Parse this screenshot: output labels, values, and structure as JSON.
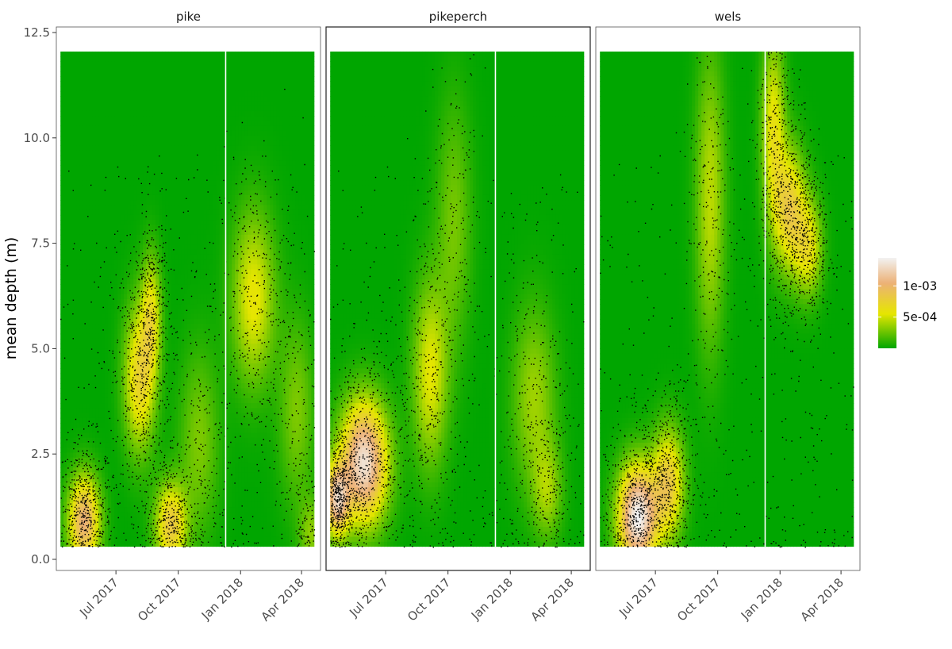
{
  "chart_data": {
    "type": "heatmap",
    "ylabel": "mean depth (m)",
    "ylim": [
      0,
      12.5
    ],
    "y_ticks": [
      {
        "value": 0.0,
        "label": "0.0"
      },
      {
        "value": 2.5,
        "label": "2.5"
      },
      {
        "value": 5.0,
        "label": "5.0"
      },
      {
        "value": 7.5,
        "label": "7.5"
      },
      {
        "value": 10.0,
        "label": "10.0"
      },
      {
        "value": 12.5,
        "label": "12.5"
      }
    ],
    "x_range": [
      "2017-04-04",
      "2018-04-29"
    ],
    "x_ticks": [
      {
        "date": "2017-07-01",
        "label": "Jul 2017"
      },
      {
        "date": "2017-10-01",
        "label": "Oct 2017"
      },
      {
        "date": "2018-01-01",
        "label": "Jan 2018"
      },
      {
        "date": "2018-04-01",
        "label": "Apr 2018"
      }
    ],
    "heat_extent": {
      "x": [
        "2017-04-10",
        "2018-04-20"
      ],
      "y": [
        0.3,
        12.05
      ]
    },
    "gap_line_date": "2017-12-10",
    "legend": {
      "position": "right",
      "breaks": [
        {
          "value": 0.001,
          "label": "1e-03"
        },
        {
          "value": 0.0005,
          "label": "5e-04"
        }
      ],
      "max": 0.00145,
      "colors": {
        "low": "#00a600",
        "mid": "#e6e600",
        "mid2": "#ecb176",
        "high": "#f2f2f2"
      }
    },
    "panels": [
      {
        "name": "pike",
        "density_peaks": [
          {
            "date": "2017-05-15",
            "depth": 0.9,
            "density": 0.00105,
            "sd_days": 16,
            "sd_depth": 0.75
          },
          {
            "date": "2017-08-05",
            "depth": 4.3,
            "density": 0.00072,
            "sd_days": 16,
            "sd_depth": 1.2
          },
          {
            "date": "2017-08-22",
            "depth": 5.8,
            "density": 0.00055,
            "sd_days": 10,
            "sd_depth": 1.0
          },
          {
            "date": "2017-09-20",
            "depth": 0.8,
            "density": 0.00082,
            "sd_days": 16,
            "sd_depth": 0.7
          },
          {
            "date": "2018-01-20",
            "depth": 6.2,
            "density": 0.00058,
            "sd_days": 22,
            "sd_depth": 1.4
          },
          {
            "date": "2018-03-25",
            "depth": 3.5,
            "density": 0.0003,
            "sd_days": 18,
            "sd_depth": 1.5
          },
          {
            "date": "2018-04-15",
            "depth": 0.6,
            "density": 0.00032,
            "sd_days": 12,
            "sd_depth": 0.6
          },
          {
            "date": "2017-11-01",
            "depth": 2.8,
            "density": 0.0003,
            "sd_days": 20,
            "sd_depth": 1.5
          }
        ]
      },
      {
        "name": "pikeperch",
        "density_peaks": [
          {
            "date": "2017-05-30",
            "depth": 2.3,
            "density": 0.00135,
            "sd_days": 24,
            "sd_depth": 1.0
          },
          {
            "date": "2017-04-20",
            "depth": 1.4,
            "density": 0.0011,
            "sd_days": 12,
            "sd_depth": 0.6
          },
          {
            "date": "2017-09-05",
            "depth": 4.4,
            "density": 0.00055,
            "sd_days": 18,
            "sd_depth": 1.5
          },
          {
            "date": "2017-10-10",
            "depth": 8.0,
            "density": 0.00028,
            "sd_days": 18,
            "sd_depth": 2.0
          },
          {
            "date": "2018-02-05",
            "depth": 3.8,
            "density": 0.00038,
            "sd_days": 22,
            "sd_depth": 1.5
          },
          {
            "date": "2018-02-25",
            "depth": 1.6,
            "density": 0.00035,
            "sd_days": 15,
            "sd_depth": 0.8
          }
        ]
      },
      {
        "name": "wels",
        "density_peaks": [
          {
            "date": "2017-06-05",
            "depth": 1.0,
            "density": 0.00145,
            "sd_days": 20,
            "sd_depth": 0.85
          },
          {
            "date": "2017-07-20",
            "depth": 1.8,
            "density": 0.0008,
            "sd_days": 16,
            "sd_depth": 0.9
          },
          {
            "date": "2017-09-20",
            "depth": 8.5,
            "density": 0.00045,
            "sd_days": 15,
            "sd_depth": 2.4
          },
          {
            "date": "2017-12-22",
            "depth": 10.2,
            "density": 0.0006,
            "sd_days": 12,
            "sd_depth": 1.5
          },
          {
            "date": "2018-01-15",
            "depth": 8.3,
            "density": 0.00078,
            "sd_days": 16,
            "sd_depth": 1.0
          },
          {
            "date": "2018-02-12",
            "depth": 7.4,
            "density": 0.00058,
            "sd_days": 14,
            "sd_depth": 0.8
          }
        ]
      }
    ]
  }
}
